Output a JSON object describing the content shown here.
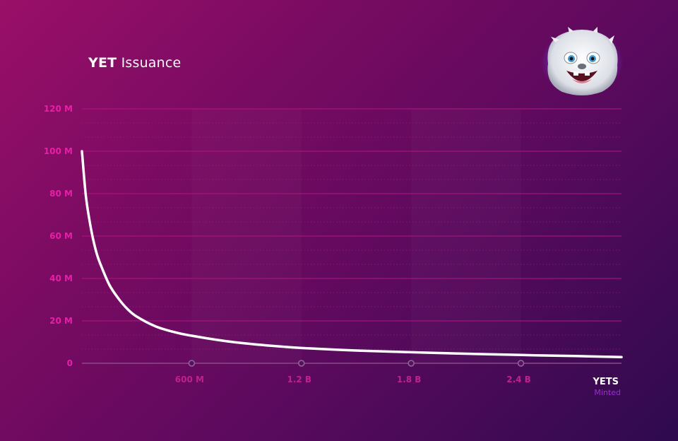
{
  "chart_data": {
    "type": "line",
    "title_bold": "YET",
    "title_rest": "Issuance",
    "x_unit_label": "YETS",
    "x_sublabel": "Minted",
    "xlim": [
      0,
      2950000000
    ],
    "ylim": [
      0,
      120000000
    ],
    "y_ticks": [
      {
        "value": 0,
        "label": "0"
      },
      {
        "value": 20000000,
        "label": "20 M"
      },
      {
        "value": 40000000,
        "label": "40 M"
      },
      {
        "value": 60000000,
        "label": "60 M"
      },
      {
        "value": 80000000,
        "label": "80 M"
      },
      {
        "value": 100000000,
        "label": "100 M"
      },
      {
        "value": 120000000,
        "label": "120 M"
      }
    ],
    "x_ticks": [
      {
        "value": 600000000,
        "label": "600 M"
      },
      {
        "value": 1200000000,
        "label": "1.2 B"
      },
      {
        "value": 1800000000,
        "label": "1.8 B"
      },
      {
        "value": 2400000000,
        "label": "2.4 B"
      }
    ],
    "series": [
      {
        "x": [
          0,
          20000000,
          40000000,
          60000000,
          80000000,
          100000000,
          150000000,
          200000000,
          250000000,
          300000000,
          400000000,
          500000000,
          600000000,
          800000000,
          1000000000,
          1200000000,
          1500000000,
          1800000000,
          2100000000,
          2400000000,
          2700000000,
          2950000000
        ],
        "y": [
          100000000,
          80000000,
          68000000,
          59000000,
          52000000,
          47000000,
          37000000,
          30500000,
          25500000,
          22000000,
          17500000,
          14800000,
          13000000,
          10300000,
          8500000,
          7200000,
          6000000,
          5200000,
          4500000,
          3900000,
          3400000,
          2900000
        ]
      }
    ],
    "colors": {
      "line": "#ffffff",
      "y_tick_label": "#e91ea8",
      "x_tick_label": "#c0208f",
      "gridline": "#b3157f",
      "minor_grid": "#a0247e",
      "axis": "#8a4a8a",
      "minted_label": "#9b2ad6"
    }
  }
}
